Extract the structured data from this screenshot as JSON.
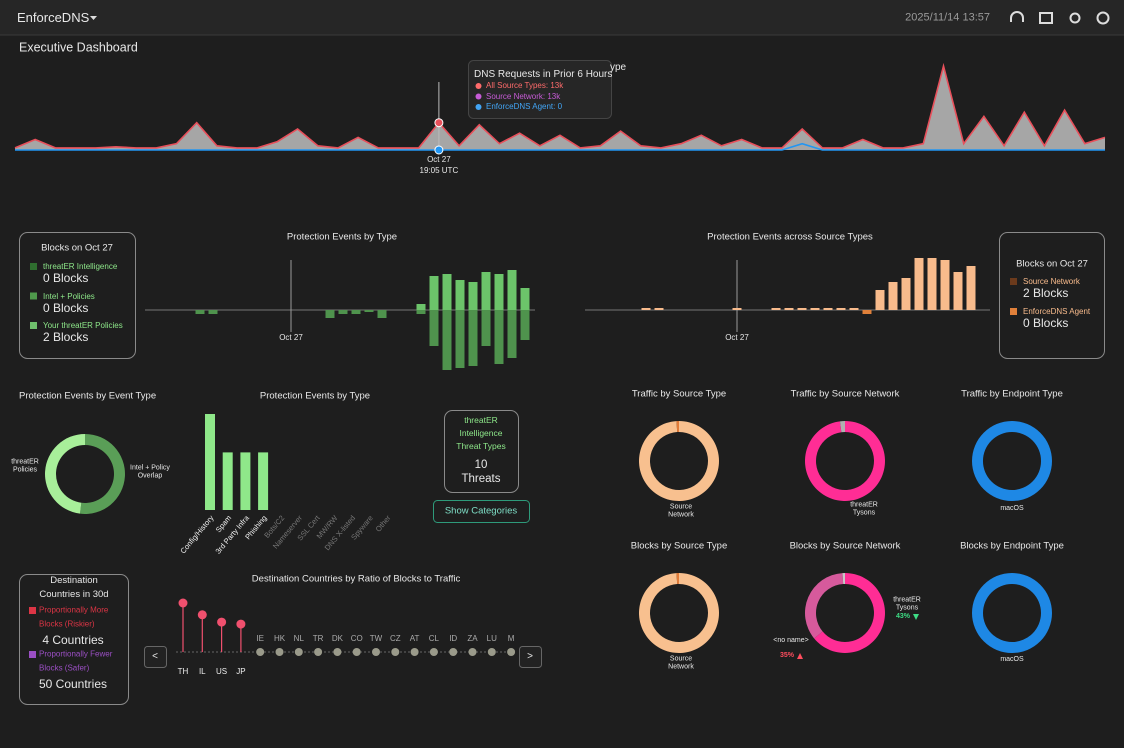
{
  "header": {
    "app": "EnforceDNS",
    "datetime": "2025/11/14 13:57"
  },
  "page_title": "Executive Dashboard",
  "dns_requests": {
    "title": "ype",
    "x": [
      null,
      null,
      null,
      null,
      null,
      null,
      null,
      null,
      null,
      null,
      null,
      null,
      null,
      null,
      null,
      null,
      null,
      null,
      null,
      null,
      null,
      {
        "date": "Oct 27",
        "time": "19:05 UTC"
      },
      null,
      null,
      null,
      null,
      null,
      null,
      null,
      null,
      null,
      null,
      null,
      null,
      null,
      null,
      null,
      null,
      null,
      null,
      null,
      null,
      null,
      null,
      null,
      null,
      null,
      null,
      null,
      null,
      null,
      null,
      null,
      null,
      null
    ],
    "series": [
      {
        "color": "#e8505b",
        "fill": "#a6a6a6",
        "values": [
          1,
          5,
          1,
          1,
          1,
          1.5,
          1,
          1,
          3,
          13,
          2,
          1,
          1,
          4,
          10,
          2,
          1,
          6,
          1,
          1,
          1,
          13,
          2,
          12,
          3,
          8,
          2,
          7,
          1,
          2,
          9,
          2,
          1,
          3,
          7,
          2,
          5,
          1,
          1,
          10,
          1,
          1,
          5,
          1,
          1,
          3,
          40,
          3,
          16,
          2,
          18,
          2,
          19,
          3,
          6
        ]
      },
      {
        "color": "#2196f3",
        "values": [
          0,
          0,
          0,
          0,
          0,
          0,
          0,
          0,
          0,
          0,
          0,
          0,
          0,
          0,
          0,
          0,
          0,
          0,
          0,
          0,
          0,
          0,
          0,
          0,
          0,
          0,
          0,
          0,
          0,
          0,
          0,
          0,
          0,
          0,
          0,
          0,
          0,
          0,
          0,
          3,
          0,
          0,
          0,
          0,
          0,
          0,
          0,
          0,
          0,
          0,
          0,
          0,
          0,
          0,
          0
        ]
      }
    ],
    "tooltip": {
      "title": "DNS Requests in Prior 6 Hours",
      "items": [
        {
          "text": "All Source Types: 13k",
          "color": "#ff6b6b"
        },
        {
          "text": "Source Network: 13k",
          "color": "#c65bd6"
        },
        {
          "text": "EnforceDNS Agent: 0",
          "color": "#42a5f5"
        }
      ]
    }
  },
  "blocks_left": {
    "title": "Blocks on Oct 27",
    "items": [
      {
        "label": "threatER Intelligence",
        "value_text": "0 Blocks",
        "color": "#2f6e2f",
        "label_color": "#8ee88a"
      },
      {
        "label": "Intel + Policies",
        "value_text": "0 Blocks",
        "color": "#4f9a4c",
        "label_color": "#8ee88a"
      },
      {
        "label": "Your threatER Policies",
        "value_text": "2 Blocks",
        "color": "#6fbf6c",
        "label_color": "#8ee88a"
      }
    ]
  },
  "events_by_type": {
    "title": "Protection Events by Type",
    "x": [
      null,
      null,
      null,
      null,
      null,
      null,
      null,
      null,
      null,
      null,
      null,
      "Oct 27",
      null,
      null,
      null,
      null,
      null,
      null,
      null,
      null,
      null,
      null,
      null,
      null,
      null,
      null,
      null,
      null,
      null,
      null
    ],
    "up": [
      0,
      0,
      0,
      0,
      0,
      0,
      0,
      0,
      0,
      0,
      0,
      0,
      0,
      0,
      0,
      0,
      0,
      0,
      0,
      0,
      0,
      3,
      17,
      18,
      15,
      14,
      19,
      18,
      20,
      11
    ],
    "down": [
      0,
      0,
      0,
      0,
      2,
      2,
      0,
      0,
      0,
      0,
      0,
      0,
      0,
      0,
      4,
      2,
      2,
      1,
      4,
      0,
      0,
      2,
      18,
      30,
      29,
      28,
      18,
      27,
      24,
      15
    ],
    "up_color": "#6cc46a",
    "down_color": "#4f934d"
  },
  "events_across_sources": {
    "title": "Protection Events across Source Types",
    "x": [
      null,
      null,
      null,
      null,
      null,
      null,
      null,
      null,
      null,
      null,
      null,
      "Oct 27",
      null,
      null,
      null,
      null,
      null,
      null,
      null,
      null,
      null,
      null,
      null,
      null,
      null,
      null,
      null,
      null,
      null,
      null
    ],
    "up": [
      0,
      0,
      0,
      0,
      1,
      1,
      0,
      0,
      0,
      0,
      0,
      1,
      0,
      0,
      1,
      1,
      1,
      1,
      1,
      1,
      1,
      0,
      10,
      14,
      16,
      26,
      26,
      25,
      19,
      22
    ],
    "down": [
      0,
      0,
      0,
      0,
      0,
      0,
      0,
      0,
      0,
      0,
      0,
      0,
      0,
      0,
      0,
      0,
      0,
      0,
      0,
      0,
      0,
      2,
      0,
      0,
      0,
      0,
      0,
      0,
      0,
      0
    ],
    "up_color": "#f8bb8c",
    "down_color": "#e0803a"
  },
  "blocks_right": {
    "title": "Blocks on Oct 27",
    "items": [
      {
        "label": "Source Network",
        "value_text": "2 Blocks",
        "color": "#6b3a1c",
        "label_color": "#f8bb8c"
      },
      {
        "label": "EnforceDNS Agent",
        "value_text": "0 Blocks",
        "color": "#e0803a",
        "label_color": "#f8bb8c"
      }
    ]
  },
  "event_type_donut": {
    "title": "Protection Events by Event Type",
    "segments": [
      {
        "label": "Intel + Policy Overlap",
        "value": 52,
        "color": "#5a9e57"
      },
      {
        "label": "threatER Policies",
        "value": 48,
        "color": "#a8ef9a"
      }
    ]
  },
  "threat_types_bar": {
    "title": "Protection Events by Type",
    "categories": [
      "Config/History",
      "Spam",
      "3rd Party Infra",
      "Phishing",
      "Bots/C2",
      "Nameserver",
      "SSL Cert",
      "MW/RW",
      "DNS X-listed",
      "Spyware",
      "Other"
    ],
    "values": [
      5,
      3,
      3,
      3,
      0,
      0,
      0,
      0,
      0,
      0,
      0
    ],
    "color": "#8fe88a"
  },
  "threat_box": {
    "title": "threatER Intelligence Threat Types",
    "count": "10 Threats",
    "button": "Show Categories"
  },
  "donuts": [
    {
      "title": "Traffic by Source Type",
      "segments": [
        {
          "label": "Source Network",
          "value": 99,
          "color": "#f8c08f"
        },
        {
          "label": null,
          "value": 1,
          "color": "#e07b39"
        }
      ]
    },
    {
      "title": "Traffic by Source Network",
      "segments": [
        {
          "label": "threatER Tysons",
          "value": 98,
          "color": "#ff2d95"
        },
        {
          "label": null,
          "value": 2,
          "color": "#b0b0b0"
        }
      ]
    },
    {
      "title": "Traffic by Endpoint Type",
      "segments": [
        {
          "label": "macOS",
          "value": 100,
          "color": "#1e88e5"
        }
      ]
    },
    {
      "title": "Blocks by Source Type",
      "segments": [
        {
          "label": "Source Network",
          "value": 99,
          "color": "#f8c08f"
        },
        {
          "label": null,
          "value": 1,
          "color": "#e07b39"
        }
      ]
    },
    {
      "title": "Blocks by Source Network",
      "segments": [
        {
          "label": "threatER Tysons",
          "value": 64,
          "color": "#ff2d95",
          "change": "43%",
          "trend": "down"
        },
        {
          "label": "<no name>",
          "value": 35,
          "color": "#d65a9c",
          "change": "35%",
          "trend": "up"
        },
        {
          "label": null,
          "value": 1,
          "color": "#c8c8c8"
        }
      ]
    },
    {
      "title": "Blocks by Endpoint Type",
      "segments": [
        {
          "label": "macOS",
          "value": 100,
          "color": "#1e88e5"
        }
      ]
    }
  ],
  "destinations": {
    "title": "Destination Countries in 30d",
    "items": [
      {
        "label": "Proportionally More Blocks (Riskier)",
        "value_text": "4 Countries",
        "color": "#dc3545"
      },
      {
        "label": "Proportionally Fewer Blocks (Safer)",
        "value_text": "50 Countries",
        "color": "#9b4fc4"
      }
    ]
  },
  "ratio_chart": {
    "title": "Destination Countries by Ratio of Blocks to Traffic",
    "categories": [
      "TH",
      "IL",
      "US",
      "JP",
      "IE",
      "HK",
      "NL",
      "TR",
      "DK",
      "CO",
      "TW",
      "CZ",
      "AT",
      "CL",
      "ID",
      "ZA",
      "LU",
      "M"
    ],
    "values": [
      10,
      7.6,
      6.1,
      5.7,
      0,
      0,
      0,
      0,
      0,
      0,
      0,
      0,
      0,
      0,
      0,
      0,
      0,
      0
    ],
    "riskier_color": "#f0506e",
    "safer_color": "#9a9a8a",
    "prev": "<",
    "next": ">"
  }
}
